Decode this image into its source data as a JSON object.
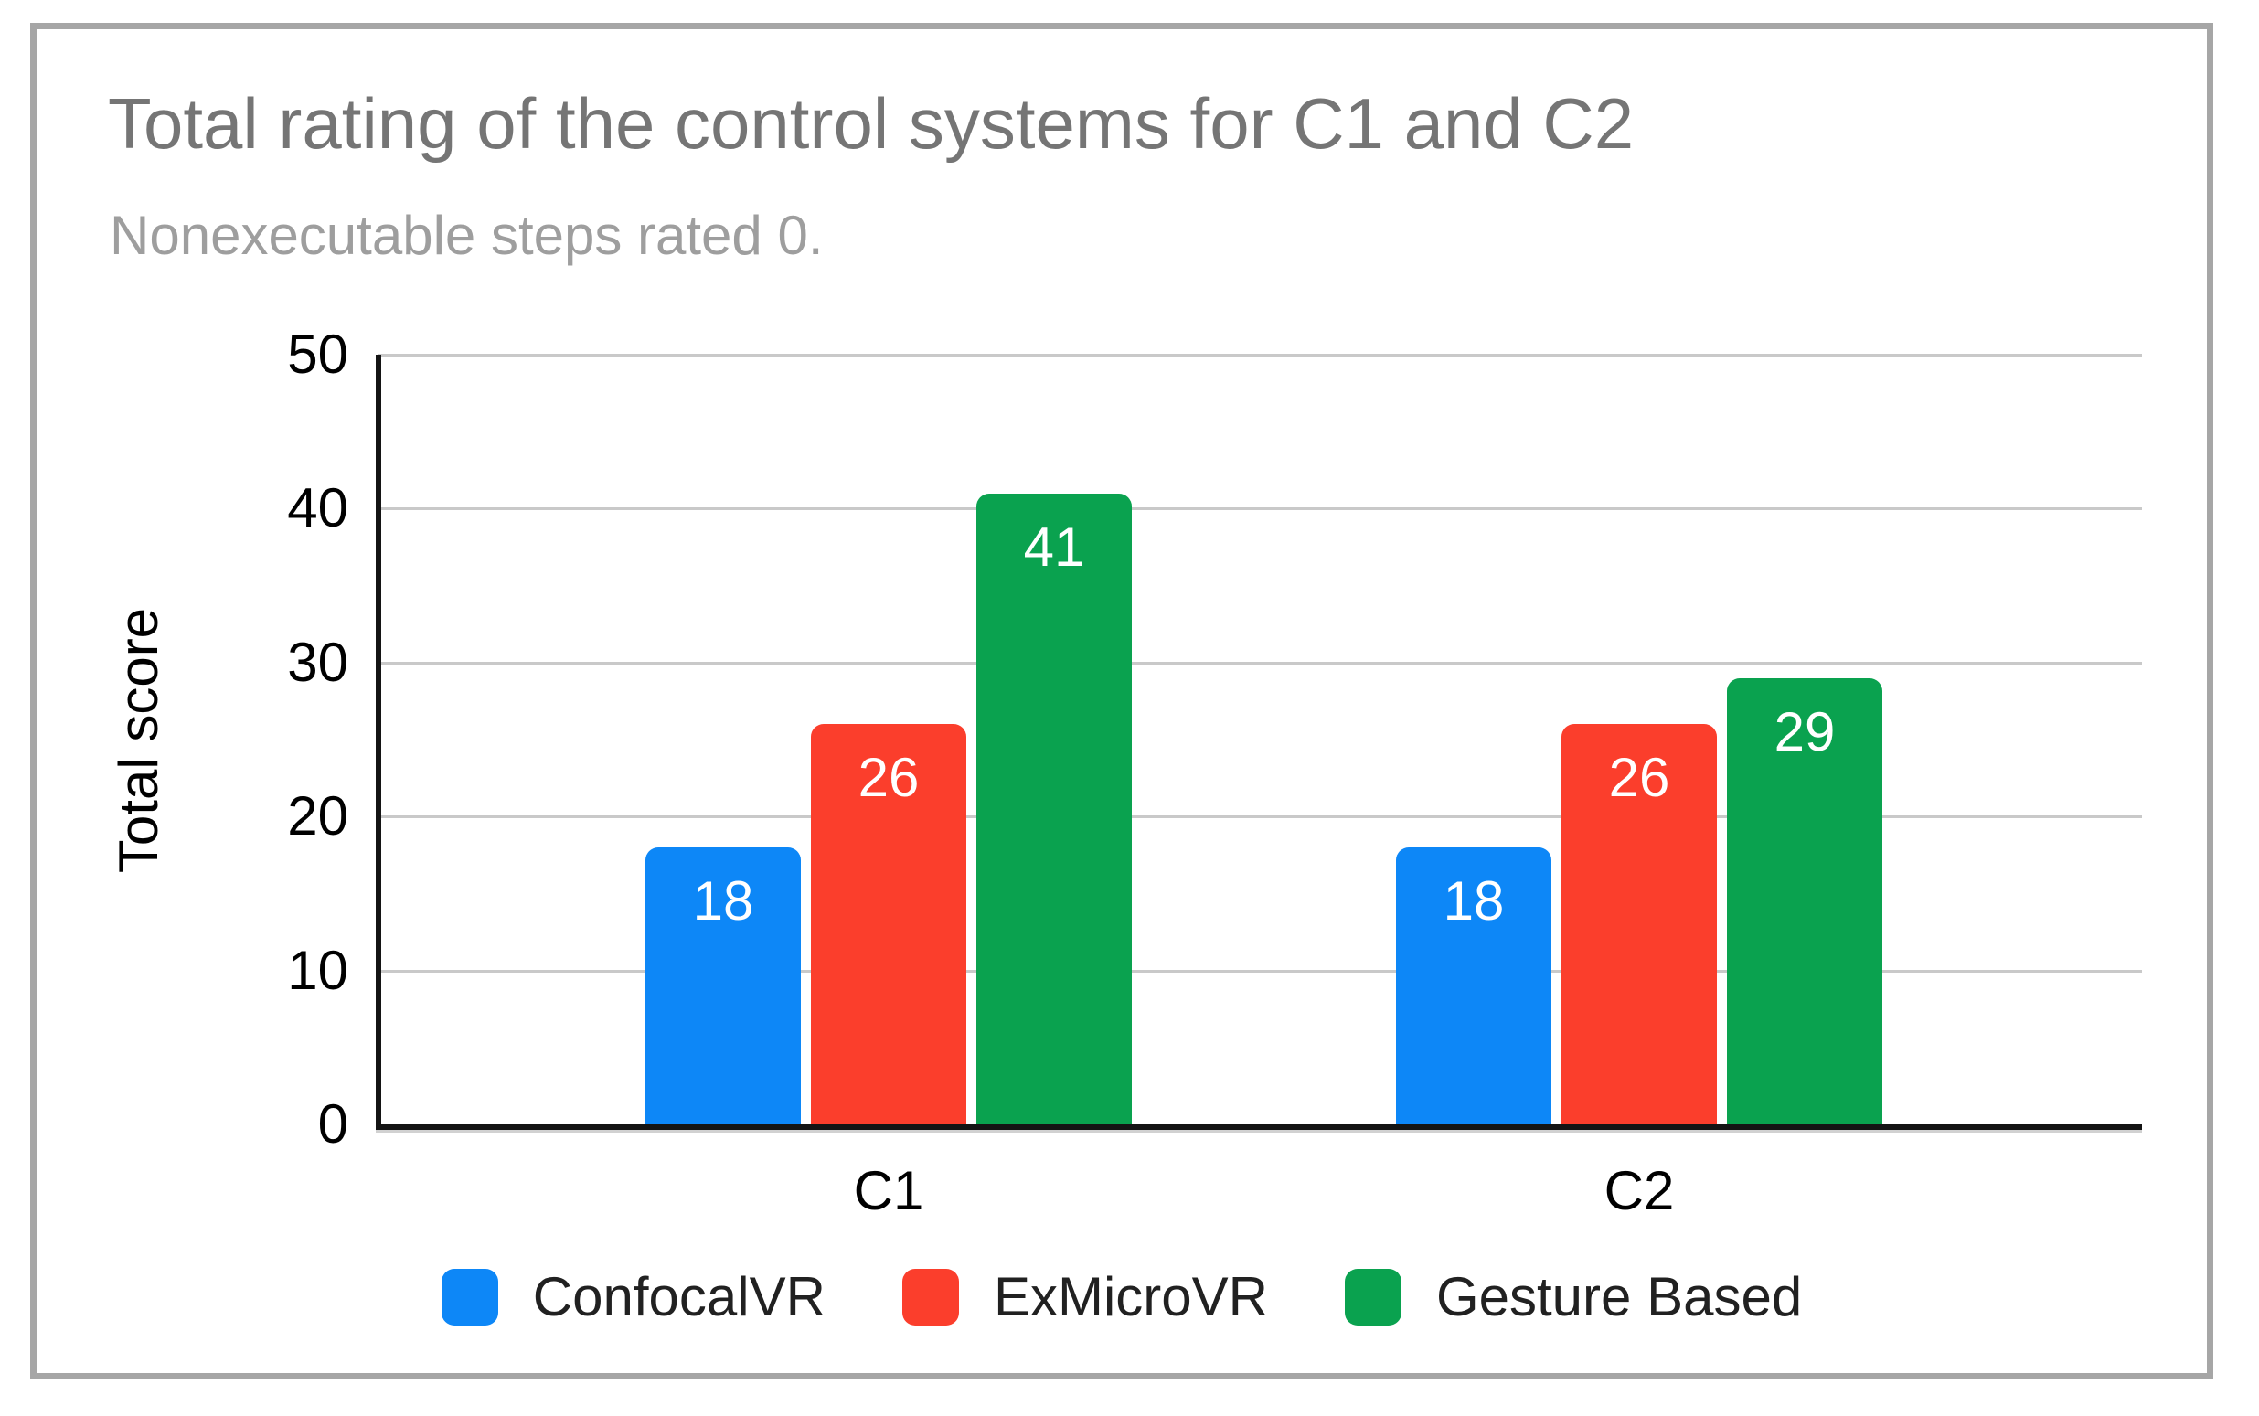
{
  "chart_data": {
    "type": "bar",
    "title": "Total rating of the control systems for C1 and C2",
    "subtitle": "Nonexecutable steps rated 0.",
    "ylabel": "Total score",
    "categories": [
      "C1",
      "C2"
    ],
    "series": [
      {
        "name": "ConfocalVR",
        "color": "#0d87f7",
        "values": [
          18,
          18
        ]
      },
      {
        "name": "ExMicroVR",
        "color": "#fb3e2c",
        "values": [
          26,
          26
        ]
      },
      {
        "name": "Gesture Based",
        "color": "#0aa24f",
        "values": [
          41,
          29
        ]
      }
    ],
    "ylim": [
      0,
      50
    ],
    "y_ticks": [
      0,
      10,
      20,
      30,
      40,
      50
    ],
    "grid": true,
    "legend_position": "bottom",
    "value_labels": "inside-top",
    "axis_color": "#141414",
    "gridline_color": "#c9c9c9",
    "title_color": "#757575",
    "subtitle_color": "#9e9e9e"
  }
}
